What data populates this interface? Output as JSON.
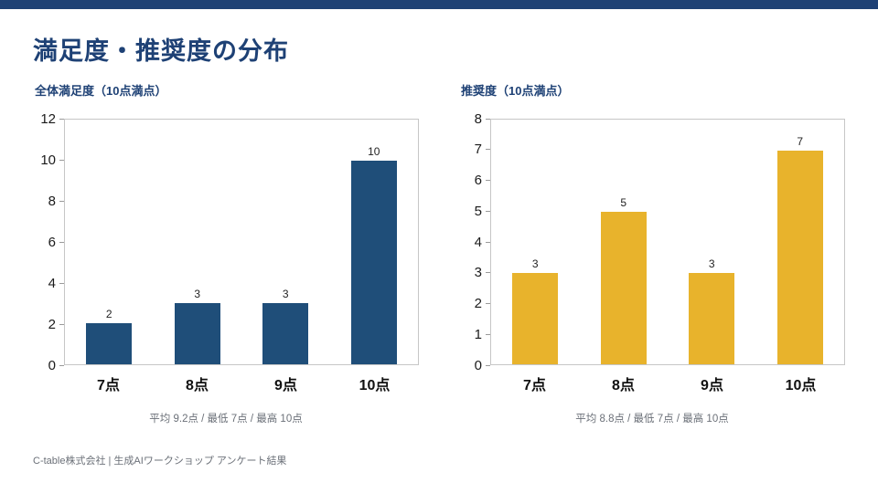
{
  "title": "満足度・推奨度の分布",
  "footer": "C-table株式会社 | 生成AIワークショップ アンケート結果",
  "accent_color": "#1E4175",
  "chart_data": [
    {
      "type": "bar",
      "title": "全体満足度（10点満点）",
      "categories": [
        "7点",
        "8点",
        "9点",
        "10点"
      ],
      "values": [
        2,
        3,
        3,
        10
      ],
      "xlabel": "",
      "ylabel": "",
      "ylim": [
        0,
        12
      ],
      "ytick_step": 2,
      "grid": false,
      "legend": "none",
      "color": "#1F4E79",
      "caption": "平均 9.2点 / 最低 7点 / 最高 10点"
    },
    {
      "type": "bar",
      "title": "推奨度（10点満点）",
      "categories": [
        "7点",
        "8点",
        "9点",
        "10点"
      ],
      "values": [
        3,
        5,
        3,
        7
      ],
      "xlabel": "",
      "ylabel": "",
      "ylim": [
        0,
        8
      ],
      "ytick_step": 1,
      "grid": false,
      "legend": "none",
      "color": "#E8B32C",
      "caption": "平均 8.8点 / 最低 7点 / 最高 10点"
    }
  ]
}
